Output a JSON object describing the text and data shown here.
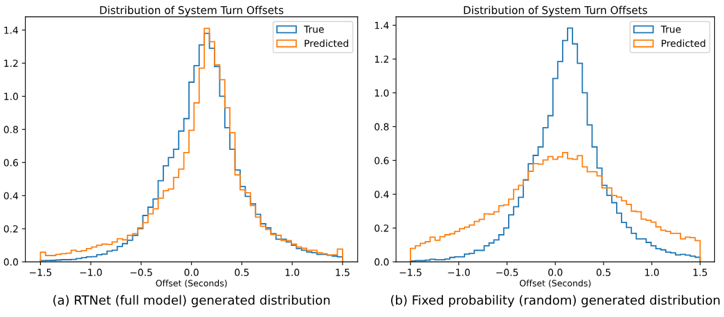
{
  "chart_data": [
    {
      "type": "histogram",
      "title": "Distribution of System Turn Offsets",
      "xlabel": "Offset (Seconds)",
      "bins": [
        -1.5,
        -1.449,
        -1.398,
        -1.347,
        -1.297,
        -1.246,
        -1.195,
        -1.144,
        -1.093,
        -1.042,
        -0.992,
        -0.941,
        -0.89,
        -0.839,
        -0.788,
        -0.737,
        -0.686,
        -0.636,
        -0.585,
        -0.534,
        -0.483,
        -0.432,
        -0.381,
        -0.331,
        -0.28,
        -0.229,
        -0.178,
        -0.127,
        -0.076,
        -0.025,
        0.025,
        0.076,
        0.127,
        0.178,
        0.229,
        0.28,
        0.331,
        0.381,
        0.432,
        0.483,
        0.534,
        0.585,
        0.636,
        0.686,
        0.737,
        0.788,
        0.839,
        0.89,
        0.941,
        0.992,
        1.042,
        1.093,
        1.144,
        1.195,
        1.246,
        1.297,
        1.347,
        1.398,
        1.449,
        1.5
      ],
      "series": [
        {
          "name": "True",
          "color": "#1f77b4",
          "values": [
            0.007,
            0.008,
            0.009,
            0.011,
            0.013,
            0.013,
            0.015,
            0.02,
            0.025,
            0.03,
            0.031,
            0.043,
            0.047,
            0.065,
            0.07,
            0.093,
            0.11,
            0.13,
            0.16,
            0.2,
            0.28,
            0.33,
            0.38,
            0.49,
            0.58,
            0.63,
            0.68,
            0.79,
            0.865,
            1.085,
            1.185,
            1.31,
            1.38,
            1.29,
            1.18,
            1.0,
            0.81,
            0.68,
            0.555,
            0.455,
            0.395,
            0.35,
            0.287,
            0.23,
            0.205,
            0.17,
            0.137,
            0.137,
            0.12,
            0.1,
            0.08,
            0.07,
            0.06,
            0.055,
            0.045,
            0.045,
            0.04,
            0.035,
            0.03
          ]
        },
        {
          "name": "Predicted",
          "color": "#ff7f0e",
          "values": [
            0.058,
            0.038,
            0.038,
            0.045,
            0.049,
            0.052,
            0.07,
            0.063,
            0.068,
            0.08,
            0.09,
            0.1,
            0.107,
            0.105,
            0.12,
            0.14,
            0.133,
            0.16,
            0.17,
            0.205,
            0.237,
            0.29,
            0.32,
            0.385,
            0.43,
            0.44,
            0.51,
            0.56,
            0.66,
            0.795,
            0.96,
            1.17,
            1.41,
            1.33,
            1.19,
            1.1,
            0.93,
            0.78,
            0.525,
            0.435,
            0.417,
            0.34,
            0.27,
            0.215,
            0.195,
            0.165,
            0.16,
            0.128,
            0.128,
            0.107,
            0.09,
            0.082,
            0.07,
            0.07,
            0.055,
            0.049,
            0.042,
            0.042,
            0.077
          ]
        }
      ],
      "xlim": [
        -1.65,
        1.65
      ],
      "ylim": [
        0,
        1.48
      ],
      "xticks": [
        {
          "value": -1.5,
          "label": "−1.5"
        },
        {
          "value": -1.0,
          "label": "−1.0"
        },
        {
          "value": -0.5,
          "label": "−0.5"
        },
        {
          "value": 0,
          "label": "0.0"
        },
        {
          "value": 0.5,
          "label": "0.5"
        },
        {
          "value": 1.0,
          "label": "1.0"
        },
        {
          "value": 1.5,
          "label": "1.5"
        }
      ],
      "yticks": [
        {
          "value": 0,
          "label": "0.0"
        },
        {
          "value": 0.2,
          "label": "0.2"
        },
        {
          "value": 0.4,
          "label": "0.4"
        },
        {
          "value": 0.6,
          "label": "0.6"
        },
        {
          "value": 0.8,
          "label": "0.8"
        },
        {
          "value": 1.0,
          "label": "1.0"
        },
        {
          "value": 1.2,
          "label": "1.2"
        },
        {
          "value": 1.4,
          "label": "1.4"
        }
      ],
      "legend": "top right",
      "annotations": [
        "(a) RTNet (full model) generated distribution"
      ]
    },
    {
      "type": "histogram",
      "title": "Distribution of System Turn Offsets",
      "xlabel": "Offset (Seconds)",
      "bins": [
        -1.5,
        -1.449,
        -1.398,
        -1.347,
        -1.297,
        -1.246,
        -1.195,
        -1.144,
        -1.093,
        -1.042,
        -0.992,
        -0.941,
        -0.89,
        -0.839,
        -0.788,
        -0.737,
        -0.686,
        -0.636,
        -0.585,
        -0.534,
        -0.483,
        -0.432,
        -0.381,
        -0.331,
        -0.28,
        -0.229,
        -0.178,
        -0.127,
        -0.076,
        -0.025,
        0.025,
        0.076,
        0.127,
        0.178,
        0.229,
        0.28,
        0.331,
        0.381,
        0.432,
        0.483,
        0.534,
        0.585,
        0.636,
        0.686,
        0.737,
        0.788,
        0.839,
        0.89,
        0.941,
        0.992,
        1.042,
        1.093,
        1.144,
        1.195,
        1.246,
        1.297,
        1.347,
        1.398,
        1.449,
        1.5
      ],
      "series": [
        {
          "name": "True",
          "color": "#1f77b4",
          "values": [
            0.005,
            0.007,
            0.007,
            0.01,
            0.015,
            0.012,
            0.012,
            0.016,
            0.026,
            0.03,
            0.03,
            0.046,
            0.05,
            0.068,
            0.068,
            0.095,
            0.112,
            0.13,
            0.16,
            0.2,
            0.278,
            0.326,
            0.382,
            0.483,
            0.58,
            0.63,
            0.68,
            0.794,
            0.865,
            1.085,
            1.185,
            1.31,
            1.383,
            1.29,
            1.175,
            1.0,
            0.81,
            0.68,
            0.555,
            0.453,
            0.393,
            0.35,
            0.288,
            0.233,
            0.203,
            0.169,
            0.136,
            0.136,
            0.115,
            0.095,
            0.078,
            0.071,
            0.057,
            0.053,
            0.041,
            0.044,
            0.04,
            0.034,
            0.027
          ]
        },
        {
          "name": "Predicted",
          "color": "#ff7f0e",
          "values": [
            0.08,
            0.095,
            0.109,
            0.119,
            0.146,
            0.128,
            0.149,
            0.16,
            0.166,
            0.18,
            0.196,
            0.205,
            0.218,
            0.239,
            0.251,
            0.284,
            0.282,
            0.296,
            0.332,
            0.337,
            0.371,
            0.428,
            0.453,
            0.487,
            0.536,
            0.581,
            0.578,
            0.603,
            0.623,
            0.607,
            0.621,
            0.647,
            0.611,
            0.607,
            0.628,
            0.562,
            0.533,
            0.533,
            0.509,
            0.437,
            0.437,
            0.392,
            0.383,
            0.362,
            0.34,
            0.3,
            0.296,
            0.252,
            0.246,
            0.235,
            0.207,
            0.187,
            0.18,
            0.169,
            0.169,
            0.136,
            0.146,
            0.143,
            0.126
          ]
        }
      ],
      "xlim": [
        -1.65,
        1.65
      ],
      "ylim": [
        0,
        1.45
      ],
      "xticks": [
        {
          "value": -1.5,
          "label": "−1.5"
        },
        {
          "value": -1.0,
          "label": "−1.0"
        },
        {
          "value": -0.5,
          "label": "−0.5"
        },
        {
          "value": 0,
          "label": "0.0"
        },
        {
          "value": 0.5,
          "label": "0.5"
        },
        {
          "value": 1.0,
          "label": "1.0"
        },
        {
          "value": 1.5,
          "label": "1.5"
        }
      ],
      "yticks": [
        {
          "value": 0,
          "label": "0.0"
        },
        {
          "value": 0.2,
          "label": "0.2"
        },
        {
          "value": 0.4,
          "label": "0.4"
        },
        {
          "value": 0.6,
          "label": "0.6"
        },
        {
          "value": 0.8,
          "label": "0.8"
        },
        {
          "value": 1.0,
          "label": "1.0"
        },
        {
          "value": 1.2,
          "label": "1.2"
        },
        {
          "value": 1.4,
          "label": "1.4"
        }
      ],
      "legend": "top right",
      "annotations": [
        "(b) Fixed probability (random) generated distribution"
      ]
    }
  ]
}
